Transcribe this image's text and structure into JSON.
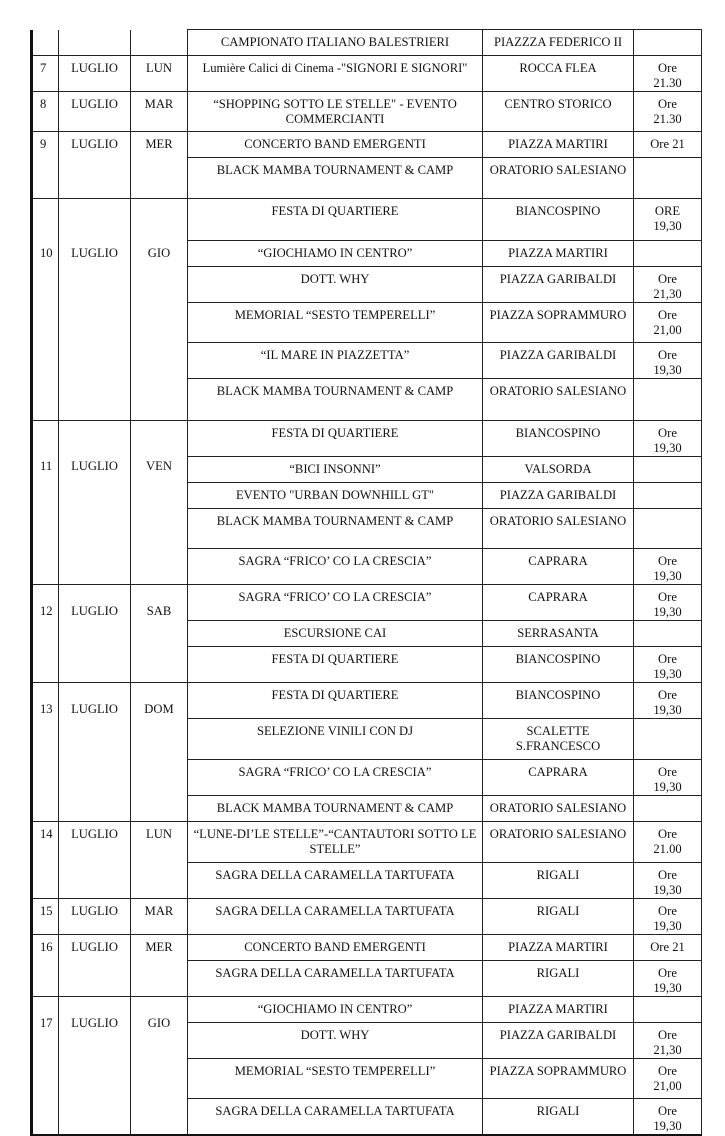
{
  "first_row": {
    "title": "CAMPIONATO ITALIANO  BALESTRIERI",
    "place": "PIAZZZA FEDERICO II",
    "time": ""
  },
  "days": [
    {
      "num": "7",
      "month": "LUGLIO",
      "dow": "LUN",
      "events": [
        {
          "title": "Lumière Calici di Cinema -\"SIGNORI E SIGNORI\"",
          "place": "ROCCA FLEA",
          "time": "Ore 21.30"
        }
      ]
    },
    {
      "num": "8",
      "month": "LUGLIO",
      "dow": "MAR",
      "events": [
        {
          "title": "“SHOPPING SOTTO LE STELLE\" - EVENTO COMMERCIANTI",
          "place": "CENTRO STORICO",
          "time": "Ore 21.30"
        }
      ]
    },
    {
      "num": "9",
      "month": "LUGLIO",
      "dow": "MER",
      "events": [
        {
          "title": "CONCERTO BAND EMERGENTI",
          "place": "PIAZZA MARTIRI",
          "time": "Ore 21"
        },
        {
          "title": "BLACK MAMBA TOURNAMENT & CAMP",
          "place": "ORATORIO SALESIANO",
          "time": ""
        }
      ]
    },
    {
      "num": "10",
      "month": "LUGLIO",
      "dow": "GIO",
      "events": [
        {
          "title": "FESTA DI QUARTIERE",
          "place": "BIANCOSPINO",
          "time": "ORE 19,30"
        },
        {
          "title": "“GIOCHIAMO IN CENTRO”",
          "place": "PIAZZA MARTIRI",
          "time": ""
        },
        {
          "title": "DOTT. WHY",
          "place": "PIAZZA GARIBALDI",
          "time": "Ore 21,30"
        },
        {
          "title": "MEMORIAL  “SESTO TEMPERELLI”",
          "place": "PIAZZA SOPRAMMURO",
          "time": "Ore 21,00"
        },
        {
          "title": "“IL MARE IN PIAZZETTA”",
          "place": "PIAZZA GARIBALDI",
          "time": "Ore 19,30"
        },
        {
          "title": "BLACK MAMBA TOURNAMENT & CAMP",
          "place": "ORATORIO SALESIANO",
          "time": ""
        }
      ]
    },
    {
      "num": "11",
      "month": "LUGLIO",
      "dow": "VEN",
      "events": [
        {
          "title": "FESTA DI QUARTIERE",
          "place": "BIANCOSPINO",
          "time": "Ore 19,30"
        },
        {
          "title": "“BICI INSONNI”",
          "place": "VALSORDA",
          "time": ""
        },
        {
          "title": "EVENTO \"URBAN DOWNHILL GT\"",
          "place": "PIAZZA GARIBALDI",
          "time": ""
        },
        {
          "title": "BLACK MAMBA TOURNAMENT & CAMP",
          "place": "ORATORIO SALESIANO",
          "time": ""
        },
        {
          "title": "SAGRA “FRICO’ CO LA CRESCIA”",
          "place": "CAPRARA",
          "time": "Ore 19,30"
        }
      ]
    },
    {
      "num": "12",
      "month": "LUGLIO",
      "dow": "SAB",
      "events": [
        {
          "title": "SAGRA “FRICO’ CO LA CRESCIA”",
          "place": "CAPRARA",
          "time": "Ore 19,30"
        },
        {
          "title": "ESCURSIONE CAI",
          "place": "SERRASANTA",
          "time": ""
        },
        {
          "title": "FESTA DI QUARTIERE",
          "place": "BIANCOSPINO",
          "time": "Ore 19,30"
        }
      ]
    },
    {
      "num": "13",
      "month": "LUGLIO",
      "dow": "DOM",
      "events": [
        {
          "title": "FESTA DI QUARTIERE",
          "place": "BIANCOSPINO",
          "time": "Ore 19,30"
        },
        {
          "title": "SELEZIONE VINILI CON DJ",
          "place": "SCALETTE S.FRANCESCO",
          "time": ""
        },
        {
          "title": "SAGRA “FRICO’ CO LA CRESCIA”",
          "place": "CAPRARA",
          "time": "Ore 19,30"
        },
        {
          "title": "BLACK MAMBA TOURNAMENT & CAMP",
          "place": "ORATORIO SALESIANO",
          "time": ""
        }
      ]
    },
    {
      "num": "14",
      "month": "LUGLIO",
      "dow": "LUN",
      "events": [
        {
          "title": "“LUNE-DI’LE STELLE”-“CANTAUTORI SOTTO LE STELLE”",
          "place": "ORATORIO SALESIANO",
          "time": "Ore 21.00"
        },
        {
          "title": "SAGRA DELLA CARAMELLA TARTUFATA",
          "place": "RIGALI",
          "time": "Ore 19,30"
        }
      ]
    },
    {
      "num": "15",
      "month": "LUGLIO",
      "dow": "MAR",
      "events": [
        {
          "title": "SAGRA DELLA CARAMELLA TARTUFATA",
          "place": "RIGALI",
          "time": "Ore 19,30"
        }
      ]
    },
    {
      "num": "16",
      "month": "LUGLIO",
      "dow": "MER",
      "events": [
        {
          "title": "CONCERTO BAND EMERGENTI",
          "place": "PIAZZA MARTIRI",
          "time": "Ore 21"
        },
        {
          "title": "SAGRA DELLA CARAMELLA TARTUFATA",
          "place": "RIGALI",
          "time": "Ore 19,30"
        }
      ]
    },
    {
      "num": "17",
      "month": "LUGLIO",
      "dow": "GIO",
      "events": [
        {
          "title": "“GIOCHIAMO IN CENTRO”",
          "place": "PIAZZA MARTIRI",
          "time": ""
        },
        {
          "title": "DOTT. WHY",
          "place": "PIAZZA GARIBALDI",
          "time": "Ore 21,30"
        },
        {
          "title": "MEMORIAL  “SESTO TEMPERELLI”",
          "place": "PIAZZA SOPRAMMURO",
          "time": "Ore 21,00"
        },
        {
          "title": "SAGRA DELLA CARAMELLA TARTUFATA",
          "place": "RIGALI",
          "time": "Ore 19,30"
        }
      ]
    }
  ]
}
